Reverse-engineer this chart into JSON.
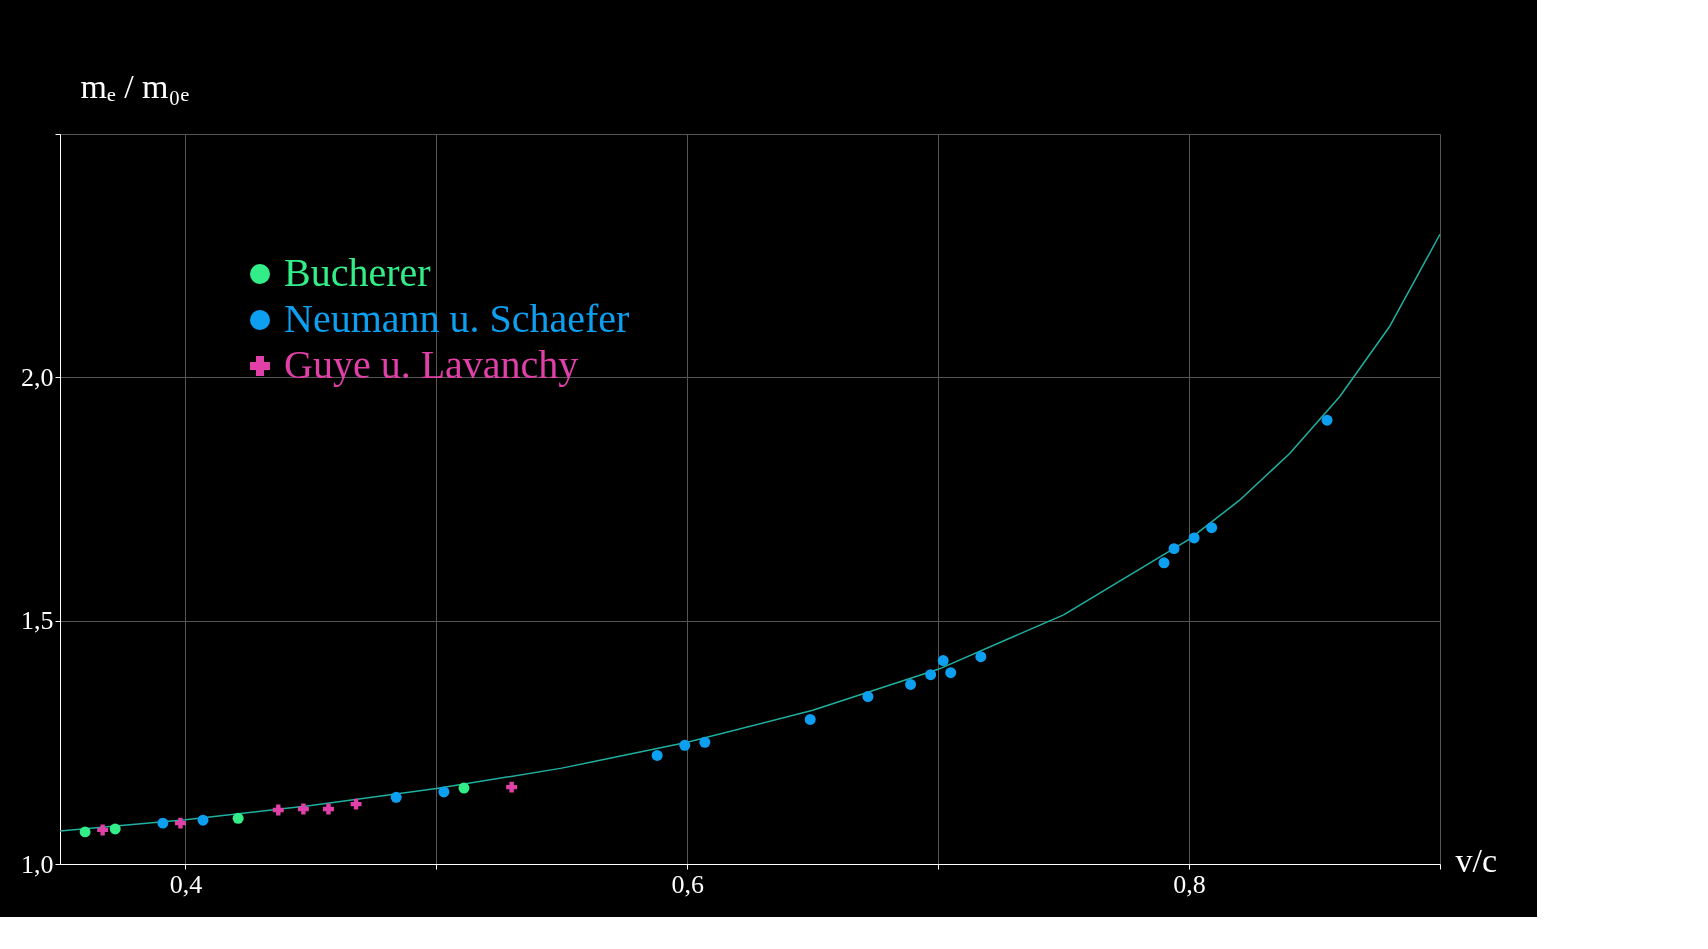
{
  "chart_data": {
    "type": "scatter",
    "xlabel": "v/c",
    "ylabel": "mₑ / m₀ₑ",
    "xlim": [
      0.35,
      0.9
    ],
    "ylim": [
      1.0,
      2.5
    ],
    "xticks": [
      {
        "value": 0.4,
        "label": "0,4"
      },
      {
        "value": 0.5,
        "label": null
      },
      {
        "value": 0.6,
        "label": "0,6"
      },
      {
        "value": 0.7,
        "label": null
      },
      {
        "value": 0.8,
        "label": "0,8"
      },
      {
        "value": 0.9,
        "label": null
      }
    ],
    "yticks": [
      {
        "value": 1.0,
        "label": "1,0"
      },
      {
        "value": 1.5,
        "label": "1,5"
      },
      {
        "value": 2.0,
        "label": "2,0"
      },
      {
        "value": 2.5,
        "label": null
      }
    ],
    "grid": true,
    "legend": "top left",
    "series": [
      {
        "name": "Bucherer",
        "color": "#33ee88",
        "marker": "circle",
        "x": [
          0.36,
          0.372,
          0.421,
          0.511
        ],
        "values": [
          1.066,
          1.072,
          1.094,
          1.156
        ]
      },
      {
        "name": "Neumann u. Schaefer",
        "color": "#0ea0f0",
        "marker": "circle",
        "x": [
          0.391,
          0.407,
          0.484,
          0.503,
          0.588,
          0.599,
          0.607,
          0.649,
          0.672,
          0.689,
          0.697,
          0.702,
          0.705,
          0.717,
          0.79,
          0.794,
          0.802,
          0.809,
          0.855
        ],
        "values": [
          1.084,
          1.09,
          1.137,
          1.148,
          1.223,
          1.244,
          1.25,
          1.297,
          1.344,
          1.369,
          1.389,
          1.418,
          1.393,
          1.426,
          1.619,
          1.648,
          1.67,
          1.691,
          1.912
        ]
      },
      {
        "name": "Guye u. Lavanchy",
        "color": "#e040a8",
        "marker": "cross",
        "x": [
          0.367,
          0.398,
          0.437,
          0.447,
          0.457,
          0.468,
          0.53
        ],
        "values": [
          1.07,
          1.084,
          1.111,
          1.113,
          1.113,
          1.123,
          1.158
        ]
      },
      {
        "type": "line",
        "color": "#20b0a0",
        "x": [
          0.35,
          0.4,
          0.45,
          0.5,
          0.55,
          0.6,
          0.65,
          0.7,
          0.75,
          0.8,
          0.82,
          0.84,
          0.86,
          0.88,
          0.9
        ],
        "values": [
          1.068,
          1.091,
          1.12,
          1.155,
          1.197,
          1.25,
          1.316,
          1.4,
          1.512,
          1.667,
          1.747,
          1.843,
          1.96,
          2.105,
          2.294
        ]
      }
    ]
  }
}
